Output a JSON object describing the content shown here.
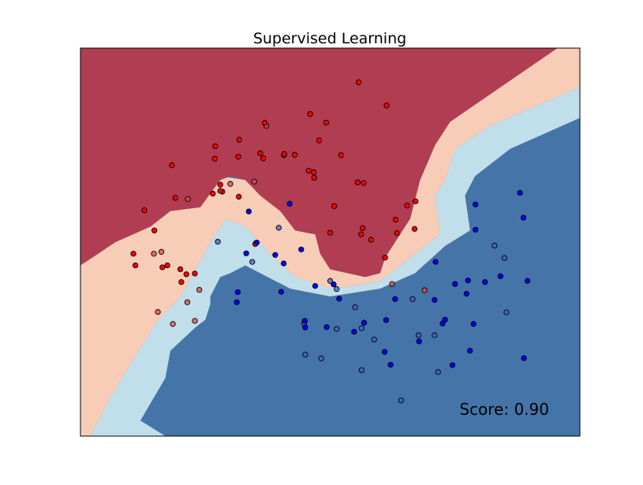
{
  "chart_data": {
    "type": "scatter",
    "title": "Supervised Learning",
    "annotation": "Score: 0.90",
    "xlabel": "",
    "ylabel": "",
    "xlim": [
      0,
      1
    ],
    "ylim": [
      0,
      1
    ],
    "xticks": "none",
    "yticks": "none",
    "grid": false,
    "legend": "none",
    "colors": {
      "red_class_fill": "#ff0000",
      "red_class_fill_test": "#e34a4a",
      "blue_class_fill": "#0000ff",
      "blue_class_fill_test": "#3f5fd0",
      "marker_edge": "#000000",
      "region_strong_red": "#b03d51",
      "region_light_red": "#f8cdb8",
      "region_light_blue": "#c1dfea",
      "region_strong_blue": "#4575a8"
    },
    "decision_regions": {
      "strong_red_boundary": [
        [
          0.0,
          1.0
        ],
        [
          0.955,
          1.0
        ],
        [
          0.74,
          0.81
        ],
        [
          0.71,
          0.75
        ],
        [
          0.68,
          0.66
        ],
        [
          0.66,
          0.56
        ],
        [
          0.61,
          0.46
        ],
        [
          0.6,
          0.42
        ],
        [
          0.57,
          0.41
        ],
        [
          0.5,
          0.43
        ],
        [
          0.48,
          0.47
        ],
        [
          0.47,
          0.52
        ],
        [
          0.43,
          0.53
        ],
        [
          0.4,
          0.58
        ],
        [
          0.36,
          0.62
        ],
        [
          0.33,
          0.66
        ],
        [
          0.3,
          0.67
        ],
        [
          0.28,
          0.66
        ],
        [
          0.24,
          0.59
        ],
        [
          0.18,
          0.58
        ],
        [
          0.14,
          0.54
        ],
        [
          0.07,
          0.5
        ],
        [
          0.0,
          0.44
        ]
      ],
      "light_red_boundary": [
        [
          0.0,
          0.44
        ],
        [
          0.07,
          0.5
        ],
        [
          0.14,
          0.54
        ],
        [
          0.18,
          0.58
        ],
        [
          0.24,
          0.59
        ],
        [
          0.28,
          0.67
        ],
        [
          0.33,
          0.66
        ],
        [
          0.36,
          0.62
        ],
        [
          0.4,
          0.58
        ],
        [
          0.43,
          0.53
        ],
        [
          0.47,
          0.52
        ],
        [
          0.48,
          0.47
        ],
        [
          0.5,
          0.43
        ],
        [
          0.57,
          0.41
        ],
        [
          0.6,
          0.42
        ],
        [
          0.61,
          0.46
        ],
        [
          0.66,
          0.56
        ],
        [
          0.68,
          0.66
        ],
        [
          0.71,
          0.75
        ],
        [
          0.74,
          0.81
        ],
        [
          0.955,
          1.0
        ],
        [
          1.0,
          1.0
        ],
        [
          1.0,
          0.9
        ],
        [
          0.82,
          0.8
        ],
        [
          0.75,
          0.74
        ],
        [
          0.73,
          0.66
        ],
        [
          0.71,
          0.62
        ],
        [
          0.72,
          0.52
        ],
        [
          0.67,
          0.47
        ],
        [
          0.6,
          0.4
        ],
        [
          0.56,
          0.39
        ],
        [
          0.5,
          0.38
        ],
        [
          0.43,
          0.41
        ],
        [
          0.38,
          0.47
        ],
        [
          0.33,
          0.54
        ],
        [
          0.29,
          0.56
        ],
        [
          0.26,
          0.5
        ],
        [
          0.23,
          0.43
        ],
        [
          0.2,
          0.36
        ],
        [
          0.15,
          0.29
        ],
        [
          0.06,
          0.1
        ],
        [
          0.02,
          0.0
        ],
        [
          0.0,
          0.0
        ]
      ],
      "light_blue_boundary": [
        [
          0.02,
          0.0
        ],
        [
          0.06,
          0.1
        ],
        [
          0.15,
          0.29
        ],
        [
          0.2,
          0.36
        ],
        [
          0.23,
          0.43
        ],
        [
          0.26,
          0.5
        ],
        [
          0.29,
          0.56
        ],
        [
          0.33,
          0.54
        ],
        [
          0.38,
          0.47
        ],
        [
          0.43,
          0.41
        ],
        [
          0.5,
          0.38
        ],
        [
          0.56,
          0.39
        ],
        [
          0.6,
          0.4
        ],
        [
          0.67,
          0.47
        ],
        [
          0.72,
          0.52
        ],
        [
          0.71,
          0.62
        ],
        [
          0.73,
          0.66
        ],
        [
          0.75,
          0.74
        ],
        [
          0.82,
          0.8
        ],
        [
          1.0,
          0.9
        ],
        [
          1.0,
          0.82
        ],
        [
          0.86,
          0.74
        ],
        [
          0.79,
          0.67
        ],
        [
          0.77,
          0.62
        ],
        [
          0.78,
          0.53
        ],
        [
          0.73,
          0.49
        ],
        [
          0.67,
          0.42
        ],
        [
          0.6,
          0.38
        ],
        [
          0.5,
          0.36
        ],
        [
          0.42,
          0.38
        ],
        [
          0.36,
          0.42
        ],
        [
          0.33,
          0.44
        ],
        [
          0.3,
          0.42
        ],
        [
          0.28,
          0.41
        ],
        [
          0.26,
          0.36
        ],
        [
          0.26,
          0.34
        ],
        [
          0.25,
          0.3
        ],
        [
          0.23,
          0.28
        ],
        [
          0.18,
          0.22
        ],
        [
          0.17,
          0.15
        ],
        [
          0.12,
          0.04
        ],
        [
          0.17,
          0.0
        ]
      ]
    },
    "series": [
      {
        "class": "red",
        "points": [
          [
            0.557,
            0.912
          ],
          [
            0.613,
            0.852
          ],
          [
            0.46,
            0.83
          ],
          [
            0.492,
            0.808
          ],
          [
            0.369,
            0.807
          ],
          [
            0.478,
            0.762
          ],
          [
            0.318,
            0.764
          ],
          [
            0.27,
            0.747
          ],
          [
            0.316,
            0.72
          ],
          [
            0.429,
            0.725
          ],
          [
            0.36,
            0.729
          ],
          [
            0.366,
            0.716
          ],
          [
            0.408,
            0.727
          ],
          [
            0.522,
            0.724
          ],
          [
            0.183,
            0.698
          ],
          [
            0.457,
            0.684
          ],
          [
            0.467,
            0.68
          ],
          [
            0.468,
            0.666
          ],
          [
            0.555,
            0.654
          ],
          [
            0.28,
            0.648
          ],
          [
            0.567,
            0.652
          ],
          [
            0.19,
            0.614
          ],
          [
            0.265,
            0.625
          ],
          [
            0.284,
            0.63
          ],
          [
            0.508,
            0.593
          ],
          [
            0.654,
            0.594
          ],
          [
            0.671,
            0.605
          ],
          [
            0.631,
            0.558
          ],
          [
            0.128,
            0.582
          ],
          [
            0.5,
            0.524
          ],
          [
            0.565,
            0.536
          ],
          [
            0.634,
            0.523
          ],
          [
            0.669,
            0.534
          ],
          [
            0.148,
            0.53
          ],
          [
            0.562,
            0.52
          ],
          [
            0.582,
            0.506
          ],
          [
            0.351,
            0.497
          ],
          [
            0.106,
            0.47
          ],
          [
            0.11,
            0.44
          ],
          [
            0.164,
            0.435
          ],
          [
            0.174,
            0.44
          ],
          [
            0.212,
            0.417
          ],
          [
            0.61,
            0.46
          ],
          [
            0.35,
            0.495
          ],
          [
            0.2,
            0.43
          ],
          [
            0.202,
            0.397
          ],
          [
            0.229,
            0.419
          ],
          [
            0.28,
            0.632
          ],
          [
            0.269,
            0.715
          ],
          [
            0.317,
            0.617
          ]
        ],
        "test_points": [
          [
            0.372,
            0.8
          ],
          [
            0.407,
            0.724
          ],
          [
            0.348,
            0.656
          ],
          [
            0.215,
            0.611
          ],
          [
            0.162,
            0.475
          ],
          [
            0.238,
            0.377
          ],
          [
            0.185,
            0.289
          ],
          [
            0.3,
            0.65
          ],
          [
            0.689,
            0.376
          ],
          [
            0.624,
            0.392
          ],
          [
            0.214,
            0.345
          ],
          [
            0.229,
            0.297
          ],
          [
            0.155,
            0.32
          ],
          [
            0.147,
            0.47
          ]
        ]
      },
      {
        "class": "blue",
        "points": [
          [
            0.88,
            0.627
          ],
          [
            0.791,
            0.597
          ],
          [
            0.887,
            0.563
          ],
          [
            0.791,
            0.532
          ],
          [
            0.419,
            0.599
          ],
          [
            0.337,
            0.579
          ],
          [
            0.353,
            0.499
          ],
          [
            0.332,
            0.471
          ],
          [
            0.39,
            0.467
          ],
          [
            0.442,
            0.481
          ],
          [
            0.407,
            0.445
          ],
          [
            0.776,
            0.401
          ],
          [
            0.711,
            0.449
          ],
          [
            0.773,
            0.367
          ],
          [
            0.841,
            0.412
          ],
          [
            0.81,
            0.397
          ],
          [
            0.895,
            0.4
          ],
          [
            0.507,
            0.391
          ],
          [
            0.402,
            0.372
          ],
          [
            0.47,
            0.387
          ],
          [
            0.315,
            0.371
          ],
          [
            0.518,
            0.354
          ],
          [
            0.709,
            0.351
          ],
          [
            0.75,
            0.392
          ],
          [
            0.63,
            0.353
          ],
          [
            0.787,
            0.289
          ],
          [
            0.313,
            0.345
          ],
          [
            0.449,
            0.297
          ],
          [
            0.568,
            0.292
          ],
          [
            0.493,
            0.281
          ],
          [
            0.612,
            0.299
          ],
          [
            0.725,
            0.29
          ],
          [
            0.548,
            0.269
          ],
          [
            0.73,
            0.3
          ],
          [
            0.609,
            0.217
          ],
          [
            0.78,
            0.22
          ],
          [
            0.745,
            0.183
          ],
          [
            0.888,
            0.201
          ],
          [
            0.621,
            0.184
          ],
          [
            0.678,
            0.244
          ],
          [
            0.45,
            0.28
          ]
        ],
        "test_points": [
          [
            0.397,
            0.537
          ],
          [
            0.344,
            0.449
          ],
          [
            0.275,
            0.501
          ],
          [
            0.849,
            0.459
          ],
          [
            0.829,
            0.491
          ],
          [
            0.513,
            0.379
          ],
          [
            0.665,
            0.353
          ],
          [
            0.55,
            0.332
          ],
          [
            0.513,
            0.276
          ],
          [
            0.563,
            0.278
          ],
          [
            0.588,
            0.249
          ],
          [
            0.677,
            0.26
          ],
          [
            0.709,
            0.26
          ],
          [
            0.853,
            0.319
          ],
          [
            0.45,
            0.21
          ],
          [
            0.482,
            0.2
          ],
          [
            0.563,
            0.17
          ],
          [
            0.716,
            0.165
          ],
          [
            0.642,
            0.092
          ],
          [
            0.5,
            0.4
          ],
          [
            0.448,
            0.291
          ]
        ]
      }
    ]
  }
}
